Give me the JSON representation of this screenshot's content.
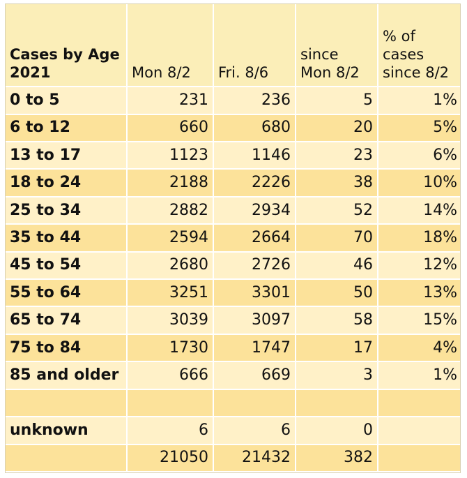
{
  "chart_data": {
    "type": "table",
    "columns": [
      "Cases by Age 2021",
      "Mon 8/2",
      "Fri. 8/6",
      "since Mon 8/2",
      "% of cases since 8/2"
    ],
    "header": {
      "age_line1": "Cases by Age",
      "age_line2": "2021",
      "mon": "Mon 8/2",
      "fri": "Fri. 8/6",
      "since_line1": "since",
      "since_line2": "Mon 8/2",
      "pct_line1": "% of",
      "pct_line2": "cases",
      "pct_line3": "since 8/2"
    },
    "rows": [
      {
        "age": "0 to 5",
        "mon": "231",
        "fri": "236",
        "since": "5",
        "pct": "1%"
      },
      {
        "age": "6 to 12",
        "mon": "660",
        "fri": "680",
        "since": "20",
        "pct": "5%"
      },
      {
        "age": "13 to 17",
        "mon": "1123",
        "fri": "1146",
        "since": "23",
        "pct": "6%"
      },
      {
        "age": "18 to 24",
        "mon": "2188",
        "fri": "2226",
        "since": "38",
        "pct": "10%"
      },
      {
        "age": "25 to 34",
        "mon": "2882",
        "fri": "2934",
        "since": "52",
        "pct": "14%"
      },
      {
        "age": "35 to 44",
        "mon": "2594",
        "fri": "2664",
        "since": "70",
        "pct": "18%"
      },
      {
        "age": "45 to 54",
        "mon": "2680",
        "fri": "2726",
        "since": "46",
        "pct": "12%"
      },
      {
        "age": "55 to 64",
        "mon": "3251",
        "fri": "3301",
        "since": "50",
        "pct": "13%"
      },
      {
        "age": "65 to 74",
        "mon": "3039",
        "fri": "3097",
        "since": "58",
        "pct": "15%"
      },
      {
        "age": "75 to 84",
        "mon": "1730",
        "fri": "1747",
        "since": "17",
        "pct": "4%"
      },
      {
        "age": "85 and older",
        "mon": "666",
        "fri": "669",
        "since": "3",
        "pct": "1%"
      }
    ],
    "unknown": {
      "age": "unknown",
      "mon": "6",
      "fri": "6",
      "since": "0"
    },
    "totals": {
      "mon": "21050",
      "fri": "21432",
      "since": "382"
    }
  },
  "colors": {
    "dark_band": "#fce29a",
    "light_band": "#fff1c8",
    "header_band": "#fbeeb8"
  }
}
